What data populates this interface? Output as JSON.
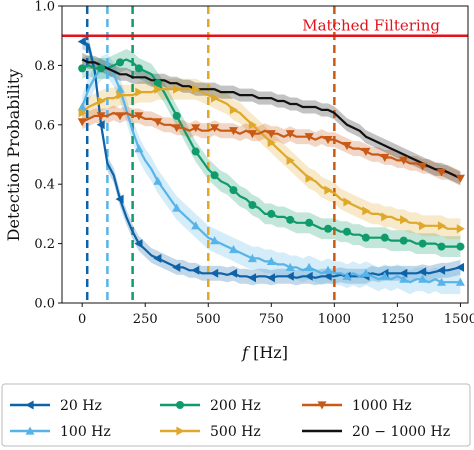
{
  "chart_data": {
    "type": "line",
    "title": "",
    "xlabel": "f [Hz]",
    "ylabel": "Detection Probability",
    "xlim": [
      -80,
      1530
    ],
    "ylim": [
      0.0,
      1.0
    ],
    "x_ticks": [
      "0",
      "250",
      "500",
      "750",
      "1000",
      "1250",
      "1500"
    ],
    "y_ticks": [
      "0.0",
      "0.2",
      "0.4",
      "0.6",
      "0.8",
      "1.0"
    ],
    "reference_line": {
      "label": "Matched Filtering",
      "y": 0.9,
      "color": "#e2121b"
    },
    "vertical_lines": [
      {
        "x": 20,
        "color": "#0d62a8"
      },
      {
        "x": 100,
        "color": "#56b4e9"
      },
      {
        "x": 200,
        "color": "#0f9b6a"
      },
      {
        "x": 500,
        "color": "#dfa829"
      },
      {
        "x": 1000,
        "color": "#c95a16"
      }
    ],
    "x": [
      0,
      25,
      50,
      75,
      100,
      125,
      150,
      175,
      200,
      225,
      250,
      275,
      300,
      325,
      350,
      375,
      400,
      425,
      450,
      475,
      500,
      525,
      550,
      575,
      600,
      625,
      650,
      675,
      700,
      725,
      750,
      775,
      800,
      825,
      850,
      875,
      900,
      925,
      950,
      975,
      1000,
      1025,
      1050,
      1075,
      1100,
      1125,
      1150,
      1175,
      1200,
      1225,
      1250,
      1275,
      1300,
      1325,
      1350,
      1375,
      1400,
      1425,
      1450,
      1475,
      1500
    ],
    "series": [
      {
        "name": "20 Hz",
        "color": "#0d62a8",
        "marker": "triangle-left",
        "values": [
          0.88,
          0.87,
          0.78,
          0.6,
          0.47,
          0.43,
          0.35,
          0.29,
          0.24,
          0.2,
          0.18,
          0.16,
          0.15,
          0.14,
          0.13,
          0.12,
          0.12,
          0.11,
          0.11,
          0.1,
          0.1,
          0.1,
          0.1,
          0.095,
          0.1,
          0.09,
          0.09,
          0.085,
          0.09,
          0.09,
          0.085,
          0.09,
          0.09,
          0.09,
          0.085,
          0.09,
          0.09,
          0.085,
          0.09,
          0.09,
          0.09,
          0.095,
          0.09,
          0.09,
          0.09,
          0.09,
          0.1,
          0.095,
          0.1,
          0.1,
          0.1,
          0.1,
          0.1,
          0.1,
          0.105,
          0.1,
          0.105,
          0.11,
          0.11,
          0.115,
          0.12
        ],
        "band": 0.025
      },
      {
        "name": "100 Hz",
        "color": "#56b4e9",
        "marker": "triangle-up",
        "values": [
          0.66,
          0.72,
          0.76,
          0.79,
          0.8,
          0.77,
          0.72,
          0.65,
          0.58,
          0.52,
          0.48,
          0.45,
          0.41,
          0.38,
          0.35,
          0.32,
          0.3,
          0.28,
          0.26,
          0.24,
          0.22,
          0.21,
          0.2,
          0.19,
          0.18,
          0.17,
          0.16,
          0.15,
          0.15,
          0.14,
          0.14,
          0.13,
          0.13,
          0.12,
          0.12,
          0.11,
          0.12,
          0.11,
          0.1,
          0.11,
          0.1,
          0.1,
          0.09,
          0.1,
          0.09,
          0.1,
          0.09,
          0.08,
          0.09,
          0.08,
          0.09,
          0.08,
          0.07,
          0.08,
          0.08,
          0.07,
          0.08,
          0.07,
          0.07,
          0.07,
          0.07
        ],
        "band": 0.04
      },
      {
        "name": "200 Hz",
        "color": "#0f9b6a",
        "marker": "circle",
        "values": [
          0.79,
          0.8,
          0.79,
          0.79,
          0.79,
          0.8,
          0.81,
          0.82,
          0.81,
          0.79,
          0.78,
          0.77,
          0.74,
          0.71,
          0.67,
          0.63,
          0.59,
          0.55,
          0.51,
          0.48,
          0.45,
          0.43,
          0.41,
          0.4,
          0.38,
          0.36,
          0.35,
          0.33,
          0.32,
          0.3,
          0.3,
          0.29,
          0.29,
          0.28,
          0.27,
          0.27,
          0.27,
          0.26,
          0.25,
          0.25,
          0.25,
          0.24,
          0.24,
          0.23,
          0.23,
          0.22,
          0.22,
          0.22,
          0.22,
          0.21,
          0.21,
          0.21,
          0.21,
          0.2,
          0.2,
          0.2,
          0.2,
          0.19,
          0.19,
          0.19,
          0.19
        ],
        "band": 0.035
      },
      {
        "name": "500 Hz",
        "color": "#dfa829",
        "marker": "triangle-right",
        "values": [
          0.64,
          0.66,
          0.67,
          0.68,
          0.69,
          0.69,
          0.7,
          0.7,
          0.7,
          0.71,
          0.71,
          0.71,
          0.72,
          0.72,
          0.72,
          0.72,
          0.72,
          0.72,
          0.72,
          0.71,
          0.7,
          0.69,
          0.68,
          0.67,
          0.65,
          0.64,
          0.62,
          0.6,
          0.58,
          0.56,
          0.54,
          0.52,
          0.5,
          0.48,
          0.46,
          0.44,
          0.42,
          0.41,
          0.39,
          0.38,
          0.37,
          0.35,
          0.34,
          0.33,
          0.32,
          0.31,
          0.3,
          0.3,
          0.29,
          0.29,
          0.28,
          0.28,
          0.27,
          0.27,
          0.26,
          0.26,
          0.26,
          0.26,
          0.25,
          0.25,
          0.25
        ],
        "band": 0.035
      },
      {
        "name": "1000 Hz",
        "color": "#c95a16",
        "marker": "triangle-down",
        "values": [
          0.61,
          0.62,
          0.63,
          0.63,
          0.63,
          0.64,
          0.63,
          0.64,
          0.63,
          0.63,
          0.62,
          0.62,
          0.61,
          0.6,
          0.6,
          0.59,
          0.59,
          0.58,
          0.59,
          0.58,
          0.58,
          0.59,
          0.58,
          0.58,
          0.58,
          0.57,
          0.58,
          0.57,
          0.57,
          0.58,
          0.57,
          0.57,
          0.56,
          0.57,
          0.56,
          0.56,
          0.56,
          0.55,
          0.56,
          0.55,
          0.55,
          0.54,
          0.53,
          0.52,
          0.52,
          0.51,
          0.5,
          0.5,
          0.49,
          0.49,
          0.48,
          0.48,
          0.47,
          0.47,
          0.46,
          0.46,
          0.45,
          0.44,
          0.44,
          0.43,
          0.42
        ],
        "band": 0.025
      },
      {
        "name": "20 − 1000 Hz",
        "color": "#111111",
        "marker": "none",
        "values": [
          0.82,
          0.81,
          0.81,
          0.8,
          0.79,
          0.78,
          0.77,
          0.77,
          0.76,
          0.76,
          0.76,
          0.75,
          0.75,
          0.75,
          0.74,
          0.74,
          0.73,
          0.73,
          0.72,
          0.72,
          0.72,
          0.72,
          0.71,
          0.71,
          0.71,
          0.7,
          0.7,
          0.7,
          0.69,
          0.69,
          0.69,
          0.68,
          0.68,
          0.67,
          0.67,
          0.66,
          0.66,
          0.66,
          0.65,
          0.65,
          0.64,
          0.62,
          0.6,
          0.59,
          0.58,
          0.56,
          0.55,
          0.54,
          0.53,
          0.52,
          0.51,
          0.5,
          0.49,
          0.48,
          0.47,
          0.46,
          0.45,
          0.45,
          0.44,
          0.43,
          0.42
        ],
        "band": 0.022
      }
    ],
    "legend": {
      "placement": "bottom",
      "entries": [
        "20 Hz",
        "200 Hz",
        "1000 Hz",
        "100 Hz",
        "500 Hz",
        "20 − 1000 Hz"
      ]
    }
  }
}
